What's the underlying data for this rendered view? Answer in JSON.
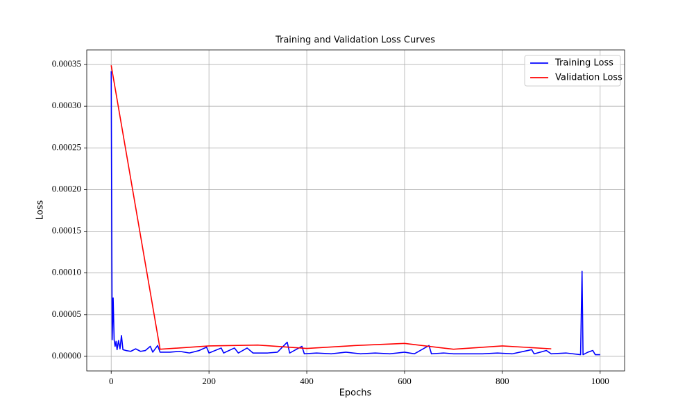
{
  "chart_data": {
    "type": "line",
    "title": "Training and Validation Loss Curves",
    "xlabel": "Epochs",
    "ylabel": "Loss",
    "xlim": [
      -50,
      1050
    ],
    "ylim": [
      -1.75e-05,
      0.0003675
    ],
    "xticks": [
      0,
      200,
      400,
      600,
      800,
      1000
    ],
    "yticks": [
      {
        "value": 0,
        "label": "0.00000"
      },
      {
        "value": 5e-05,
        "label": "0.00005"
      },
      {
        "value": 0.0001,
        "label": "0.00010"
      },
      {
        "value": 0.00015,
        "label": "0.00015"
      },
      {
        "value": 0.0002,
        "label": "0.00020"
      },
      {
        "value": 0.00025,
        "label": "0.00025"
      },
      {
        "value": 0.0003,
        "label": "0.00030"
      },
      {
        "value": 0.00035,
        "label": "0.00035"
      }
    ],
    "grid": true,
    "legend": "upper right",
    "series": [
      {
        "name": "Training Loss",
        "color": "#0000ff",
        "x": [
          0,
          2,
          4,
          6,
          8,
          10,
          12,
          15,
          18,
          21,
          24,
          30,
          40,
          50,
          60,
          70,
          80,
          85,
          95,
          100,
          120,
          140,
          160,
          180,
          195,
          200,
          225,
          230,
          252,
          260,
          278,
          290,
          320,
          340,
          360,
          365,
          390,
          395,
          420,
          450,
          480,
          510,
          540,
          570,
          600,
          620,
          650,
          655,
          680,
          700,
          730,
          760,
          790,
          820,
          860,
          865,
          890,
          900,
          930,
          960,
          963,
          965,
          975,
          985,
          990,
          1000
        ],
        "values": [
          0.000342,
          2e-05,
          7e-05,
          2e-05,
          1.2e-05,
          1.8e-05,
          8e-06,
          1.9e-05,
          9e-06,
          2.5e-05,
          8e-06,
          7e-06,
          6e-06,
          9e-06,
          6e-06,
          7e-06,
          1.2e-05,
          5e-06,
          1.3e-05,
          5e-06,
          5e-06,
          6e-06,
          4e-06,
          7e-06,
          1.1e-05,
          4e-06,
          1e-05,
          4e-06,
          1e-05,
          4e-06,
          1e-05,
          4e-06,
          4e-06,
          5e-06,
          1.7e-05,
          4e-06,
          1.2e-05,
          3e-06,
          4e-06,
          3e-06,
          5e-06,
          3e-06,
          4e-06,
          3e-06,
          5e-06,
          3e-06,
          1.3e-05,
          3e-06,
          4e-06,
          3e-06,
          3e-06,
          3e-06,
          4e-06,
          3e-06,
          8e-06,
          3e-06,
          7e-06,
          3e-06,
          4e-06,
          2e-06,
          0.000102,
          2e-06,
          5e-06,
          7e-06,
          2e-06,
          2e-06
        ]
      },
      {
        "name": "Validation Loss",
        "color": "#ff0000",
        "x": [
          0,
          100,
          200,
          300,
          400,
          500,
          600,
          700,
          800,
          900
        ],
        "values": [
          0.000349,
          8.5e-06,
          1.25e-05,
          1.35e-05,
          9.5e-06,
          1.3e-05,
          1.55e-05,
          8.5e-06,
          1.25e-05,
          9e-06
        ]
      }
    ]
  }
}
